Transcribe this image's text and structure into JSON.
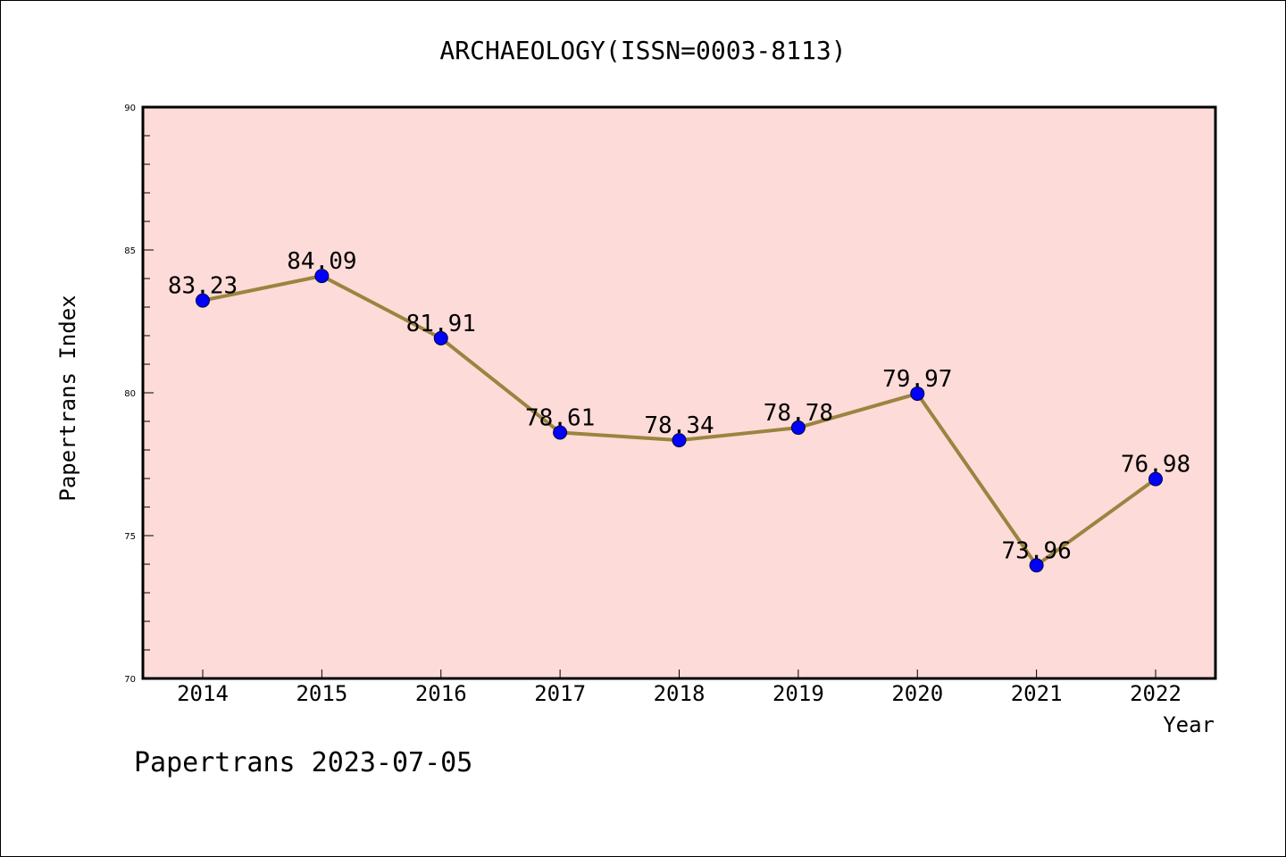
{
  "chart_data": {
    "type": "line",
    "title": "ARCHAEOLOGY(ISSN=0003-8113)",
    "xlabel": "Year",
    "ylabel": "Papertrans Index",
    "categories": [
      "2014",
      "2015",
      "2016",
      "2017",
      "2018",
      "2019",
      "2020",
      "2021",
      "2022"
    ],
    "series": [
      {
        "values": [
          83.23,
          84.09,
          81.91,
          78.61,
          78.34,
          78.78,
          79.97,
          73.96,
          76.98
        ],
        "labels": [
          "83.23",
          "84.09",
          "81.91",
          "78.61",
          "78.34",
          "78.78",
          "79.97",
          "73.96",
          "76.98"
        ]
      }
    ],
    "ylim": [
      70,
      90
    ],
    "yticks": [
      70,
      75,
      80,
      85,
      90
    ],
    "ytick_labels": [
      "70",
      "75",
      "80",
      "85",
      "90"
    ],
    "grid": false,
    "colors": {
      "plot_background": "#fddbd8",
      "line": "#9a8440",
      "marker": "#0000ff"
    }
  },
  "footer": {
    "text": "Papertrans 2023-07-05"
  }
}
